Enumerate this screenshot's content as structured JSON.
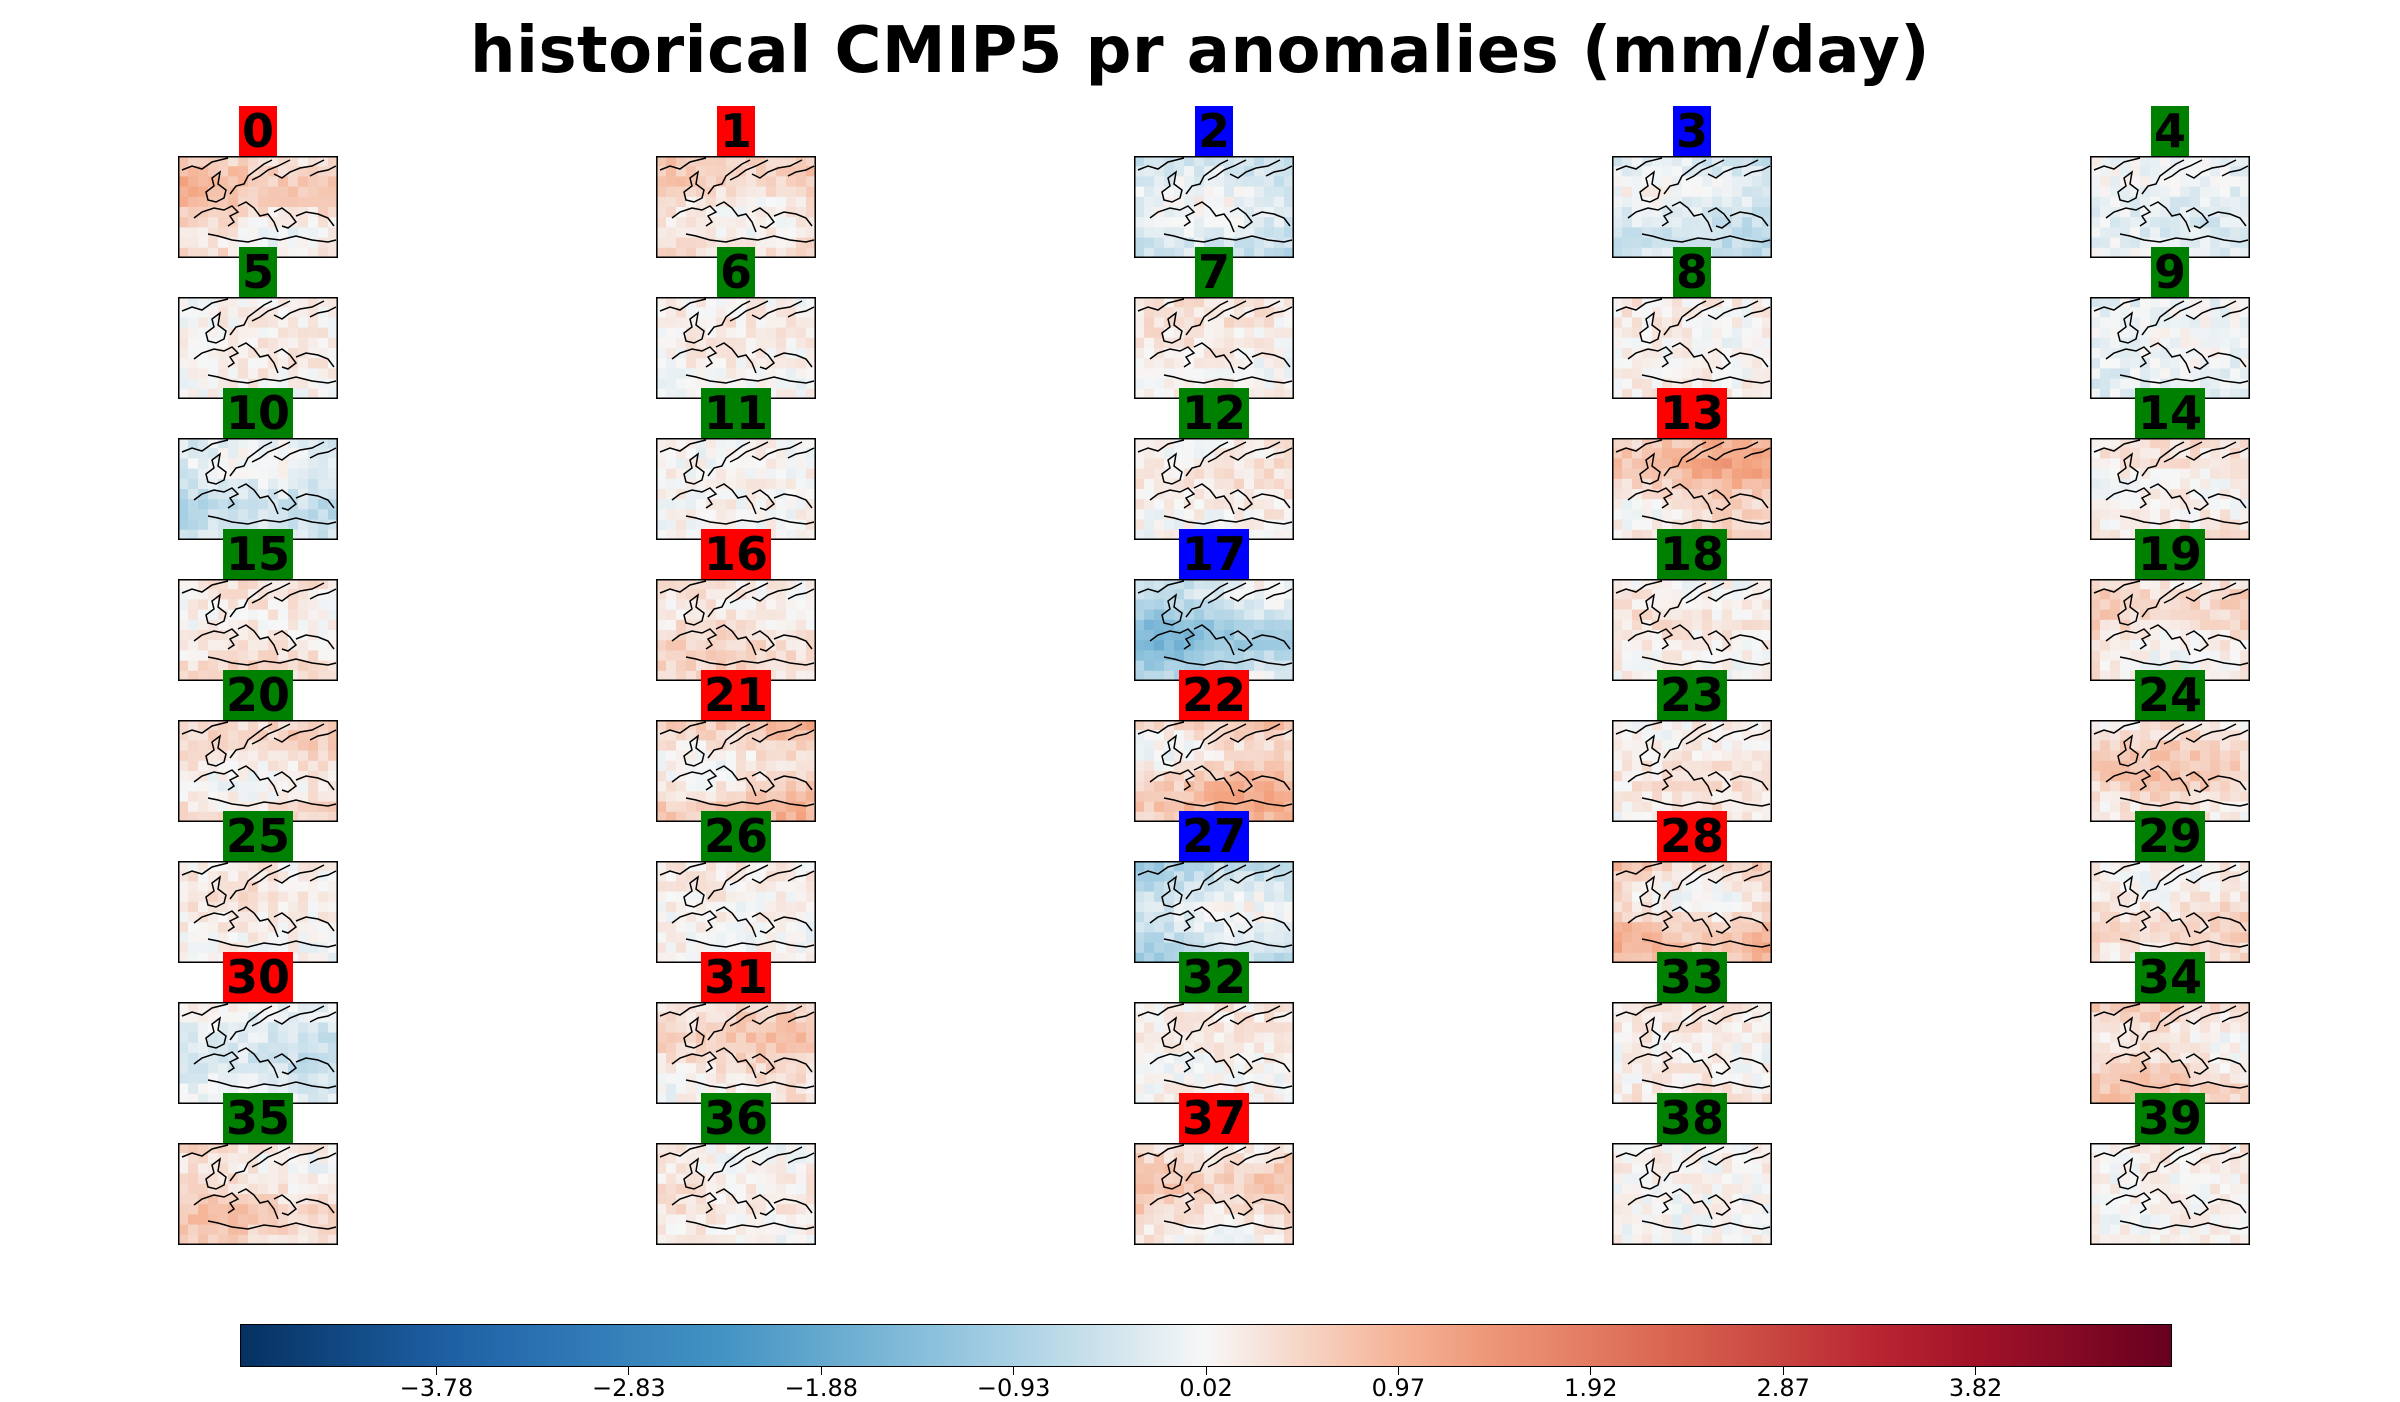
{
  "chart_data": {
    "type": "heatmap",
    "title": "historical CMIP5 pr anomalies (mm/day)",
    "panel_count": 40,
    "grid": {
      "rows": 8,
      "cols": 5
    },
    "map_region": "Europe",
    "panel_labels": [
      "0",
      "1",
      "2",
      "3",
      "4",
      "5",
      "6",
      "7",
      "8",
      "9",
      "10",
      "11",
      "12",
      "13",
      "14",
      "15",
      "16",
      "17",
      "18",
      "19",
      "20",
      "21",
      "22",
      "23",
      "24",
      "25",
      "26",
      "27",
      "28",
      "29",
      "30",
      "31",
      "32",
      "33",
      "34",
      "35",
      "36",
      "37",
      "38",
      "39"
    ],
    "panel_flags": [
      "red",
      "red",
      "blue",
      "blue",
      "green",
      "green",
      "green",
      "green",
      "green",
      "green",
      "green",
      "green",
      "green",
      "red",
      "green",
      "green",
      "red",
      "blue",
      "green",
      "green",
      "green",
      "red",
      "red",
      "green",
      "green",
      "green",
      "green",
      "blue",
      "red",
      "green",
      "red",
      "red",
      "green",
      "green",
      "green",
      "green",
      "green",
      "red",
      "green",
      "green"
    ],
    "panel_mean_anomaly": [
      0.9,
      0.7,
      -0.6,
      -0.6,
      -0.3,
      0.2,
      0.2,
      0.3,
      0.2,
      -0.2,
      -0.7,
      0.1,
      0.3,
      1.1,
      0.3,
      0.4,
      0.5,
      -1.4,
      0.3,
      0.6,
      0.6,
      0.9,
      1.0,
      0.3,
      0.7,
      0.3,
      0.2,
      -0.9,
      1.0,
      0.5,
      -0.5,
      0.7,
      0.2,
      0.3,
      0.7,
      0.7,
      0.3,
      0.8,
      0.1,
      0.2
    ],
    "flag_colors": {
      "red": "#ff0000",
      "blue": "#0000ff",
      "green": "#008000"
    },
    "colorbar": {
      "colormap": "RdBu_r",
      "range": [
        -4.75,
        4.79
      ],
      "ticks": [
        -3.78,
        -2.83,
        -1.88,
        -0.93,
        0.02,
        0.97,
        1.92,
        2.87,
        3.82
      ],
      "tick_labels": [
        "−3.78",
        "−2.83",
        "−1.88",
        "−0.93",
        "0.02",
        "0.97",
        "1.92",
        "2.87",
        "3.82"
      ]
    }
  }
}
